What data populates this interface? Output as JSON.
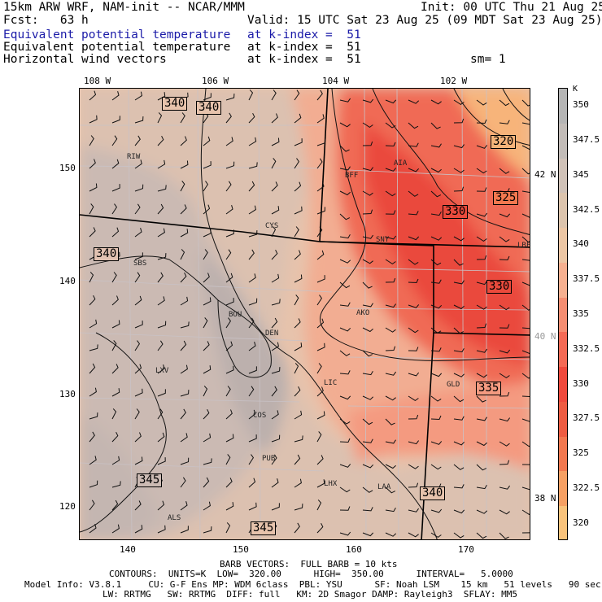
{
  "header": {
    "line1_left": "15km ARW WRF, NAM-init -- NCAR/MMM",
    "line1_right": "Init: 00 UTC Thu 21 Aug 25",
    "line2_left": "Fcst:   63 h",
    "line2_right": "Valid: 15 UTC Sat 23 Aug 25 (09 MDT Sat 23 Aug 25)",
    "fields": [
      {
        "name": "Equivalent potential temperature",
        "level": "at k-index =  51",
        "extra": "",
        "highlight": true
      },
      {
        "name": "Equivalent potential temperature",
        "level": "at k-index =  51",
        "extra": "",
        "highlight": false
      },
      {
        "name": "Horizontal wind vectors",
        "level": "at k-index =  51",
        "extra": "sm= 1",
        "highlight": false
      }
    ]
  },
  "map": {
    "top_lon_labels": [
      "108 W",
      "106 W",
      "104 W",
      "102 W"
    ],
    "left_labels": [
      "150",
      "140",
      "130",
      "120"
    ],
    "bottom_labels": [
      "140",
      "150",
      "160",
      "170"
    ],
    "right_lat_labels": [
      "42 N",
      "40 N",
      "38 N"
    ],
    "cities": [
      "RIW",
      "BFF",
      "AIA",
      "CYS",
      "SNY",
      "LBF",
      "SBS",
      "BOU",
      "AKO",
      "DEN",
      "LXV",
      "LIC",
      "GLD",
      "COS",
      "PUB",
      "LHX",
      "LAA",
      "ALS"
    ],
    "contour_labels": [
      "340",
      "340",
      "320",
      "325",
      "330",
      "340",
      "330",
      "335",
      "345",
      "340",
      "345"
    ]
  },
  "colorbar": {
    "unit": "K",
    "labels": [
      "350",
      "347.5",
      "345",
      "342.5",
      "340",
      "337.5",
      "335",
      "332.5",
      "330",
      "327.5",
      "325",
      "322.5",
      "320"
    ],
    "colors": [
      "#b5b5b5",
      "#c2bcb8",
      "#d0c2b8",
      "#dcc4ad",
      "#ecc6a4",
      "#f6b090",
      "#f58e72",
      "#f46a55",
      "#ef4a3d",
      "#ee5c42",
      "#f2784f",
      "#f6a063",
      "#f9c37b"
    ]
  },
  "footer": {
    "barb_line": "BARB VECTORS:  FULL BARB = 10 kts",
    "contours_line": "CONTOURS:  UNITS=K  LOW=  320.00      HIGH=  350.00      INTERVAL=   5.0000",
    "model_line1": "Model Info: V3.8.1     CU: G-F Ens MP: WDM 6class  PBL: YSU      SF: Noah LSM    15 km   51 levels   90 sec",
    "model_line2": "LW: RRTMG   SW: RRTMG  DIFF: full   KM: 2D Smagor DAMP: Rayleigh3  SFLAY: MM5"
  }
}
